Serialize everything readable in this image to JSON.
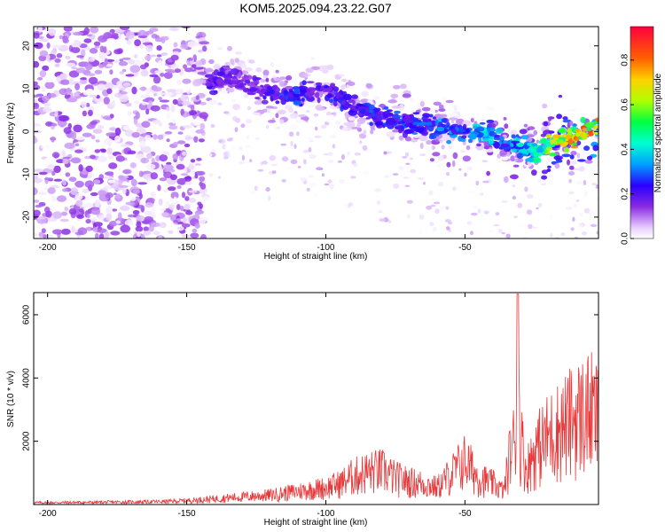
{
  "chart_data": [
    {
      "type": "heatmap",
      "title": "KOM5.2025.094.23.22.G07",
      "xlabel": "Height of straight line (km)",
      "ylabel": "Frequency (Hz)",
      "xlim": [
        -205,
        -2
      ],
      "ylim": [
        -25,
        24.5
      ],
      "x_ticks": [
        -200,
        -150,
        -100,
        -50
      ],
      "y_ticks": [
        -20,
        -10,
        0,
        10,
        20
      ],
      "colorbar": {
        "label": "Normalized spectral amplitude",
        "range": [
          0,
          0.95
        ],
        "ticks": [
          0.0,
          0.2,
          0.4,
          0.6,
          0.8
        ]
      },
      "ridge": {
        "x": [
          -142,
          -135,
          -125,
          -115,
          -110,
          -105,
          -100,
          -95,
          -90,
          -85,
          -80,
          -70,
          -60,
          -50,
          -45,
          -40,
          -35,
          -30,
          -25,
          -20,
          -15,
          -10,
          -5,
          -2
        ],
        "y": [
          11,
          13,
          10,
          8,
          8,
          9,
          10,
          8,
          6,
          5,
          3,
          2,
          1,
          0,
          0,
          -1,
          -3,
          -4,
          -5,
          -3,
          -2,
          -1,
          0,
          1
        ],
        "amplitude": [
          0.25,
          0.2,
          0.2,
          0.3,
          0.3,
          0.25,
          0.25,
          0.3,
          0.25,
          0.3,
          0.3,
          0.3,
          0.35,
          0.35,
          0.45,
          0.4,
          0.35,
          0.45,
          0.5,
          0.7,
          0.8,
          0.85,
          0.9,
          0.95
        ]
      },
      "noise_region": {
        "x_range": [
          -205,
          -143
        ],
        "y_range": [
          -25,
          24.5
        ],
        "amplitude_max": 0.15
      }
    },
    {
      "type": "line",
      "xlabel": "Height of straight line (km)",
      "ylabel": "SNR (10 * v/v)",
      "xlim": [
        -205,
        -2
      ],
      "ylim": [
        0,
        6700
      ],
      "x_ticks": [
        -200,
        -150,
        -100,
        -50
      ],
      "y_ticks": [
        2000,
        4000,
        6000
      ],
      "color": "#e8383a",
      "envelope": {
        "x": [
          -205,
          -180,
          -160,
          -150,
          -140,
          -130,
          -120,
          -110,
          -100,
          -95,
          -90,
          -85,
          -80,
          -75,
          -70,
          -65,
          -60,
          -55,
          -50,
          -45,
          -40,
          -36,
          -34,
          -32,
          -31,
          -30,
          -28,
          -25,
          -20,
          -15,
          -10,
          -5,
          -2
        ],
        "y": [
          100,
          120,
          150,
          200,
          300,
          400,
          500,
          700,
          900,
          1100,
          1500,
          1700,
          1800,
          1400,
          1200,
          1100,
          900,
          1600,
          2300,
          1400,
          1100,
          700,
          2500,
          3500,
          6650,
          3600,
          1800,
          2800,
          3600,
          4100,
          4600,
          4900,
          4500
        ]
      }
    }
  ]
}
